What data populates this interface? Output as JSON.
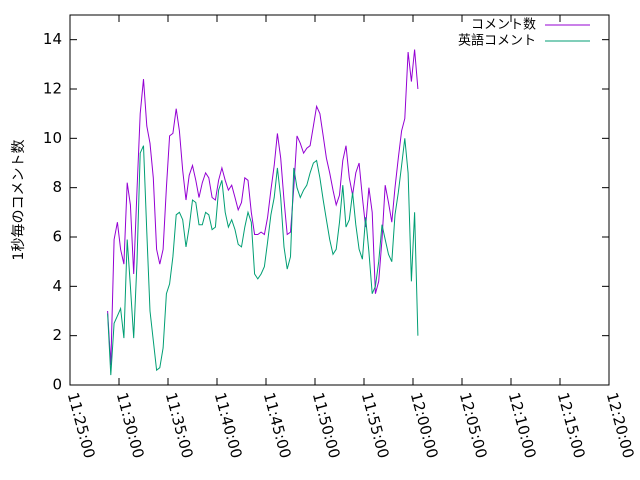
{
  "chart_data": {
    "type": "line",
    "title": "",
    "xlabel": "",
    "ylabel": "1秒毎のコメント数",
    "xlim": [
      "11:25:00",
      "12:20:00"
    ],
    "ylim": [
      0,
      15
    ],
    "grid": false,
    "legend_position": "top-right",
    "x_ticks": [
      "11:25:00",
      "11:30:00",
      "11:35:00",
      "11:40:00",
      "11:45:00",
      "11:50:00",
      "11:55:00",
      "12:00:00",
      "12:05:00",
      "12:10:00",
      "12:15:00",
      "12:20:00"
    ],
    "y_ticks": [
      0,
      2,
      4,
      6,
      8,
      10,
      12,
      14
    ],
    "series": [
      {
        "name": "コメント数",
        "color": "#9400d3",
        "points": [
          [
            "11:28:50",
            3.0
          ],
          [
            "11:29:10",
            0.8
          ],
          [
            "11:29:30",
            5.9
          ],
          [
            "11:29:50",
            6.6
          ],
          [
            "11:30:10",
            5.5
          ],
          [
            "11:30:30",
            4.9
          ],
          [
            "11:30:50",
            8.2
          ],
          [
            "11:31:10",
            7.3
          ],
          [
            "11:31:30",
            4.5
          ],
          [
            "11:31:50",
            7.9
          ],
          [
            "11:32:10",
            11.0
          ],
          [
            "11:32:30",
            12.4
          ],
          [
            "11:32:50",
            10.5
          ],
          [
            "11:33:10",
            9.8
          ],
          [
            "11:33:30",
            8.4
          ],
          [
            "11:33:50",
            5.5
          ],
          [
            "11:34:10",
            4.9
          ],
          [
            "11:34:30",
            5.5
          ],
          [
            "11:34:50",
            8.0
          ],
          [
            "11:35:10",
            10.1
          ],
          [
            "11:35:30",
            10.2
          ],
          [
            "11:35:50",
            11.2
          ],
          [
            "11:36:10",
            10.3
          ],
          [
            "11:36:30",
            8.7
          ],
          [
            "11:36:50",
            7.5
          ],
          [
            "11:37:10",
            8.5
          ],
          [
            "11:37:30",
            8.9
          ],
          [
            "11:37:50",
            8.3
          ],
          [
            "11:38:10",
            7.6
          ],
          [
            "11:38:30",
            8.2
          ],
          [
            "11:38:50",
            8.6
          ],
          [
            "11:39:10",
            8.4
          ],
          [
            "11:39:30",
            7.6
          ],
          [
            "11:39:50",
            7.5
          ],
          [
            "11:40:10",
            8.3
          ],
          [
            "11:40:30",
            8.8
          ],
          [
            "11:40:50",
            8.3
          ],
          [
            "11:41:10",
            7.9
          ],
          [
            "11:41:30",
            8.1
          ],
          [
            "11:41:50",
            7.6
          ],
          [
            "11:42:10",
            7.1
          ],
          [
            "11:42:30",
            7.4
          ],
          [
            "11:42:50",
            8.4
          ],
          [
            "11:43:10",
            8.3
          ],
          [
            "11:43:30",
            7.0
          ],
          [
            "11:43:50",
            6.1
          ],
          [
            "11:44:10",
            6.1
          ],
          [
            "11:44:30",
            6.2
          ],
          [
            "11:44:50",
            6.1
          ],
          [
            "11:45:10",
            6.8
          ],
          [
            "11:45:30",
            7.9
          ],
          [
            "11:45:50",
            8.9
          ],
          [
            "11:46:10",
            10.2
          ],
          [
            "11:46:30",
            9.2
          ],
          [
            "11:46:50",
            7.5
          ],
          [
            "11:47:10",
            6.1
          ],
          [
            "11:47:30",
            6.2
          ],
          [
            "11:47:50",
            8.0
          ],
          [
            "11:48:10",
            10.1
          ],
          [
            "11:48:30",
            9.8
          ],
          [
            "11:48:50",
            9.4
          ],
          [
            "11:49:10",
            9.6
          ],
          [
            "11:49:30",
            9.7
          ],
          [
            "11:49:50",
            10.5
          ],
          [
            "11:50:10",
            11.3
          ],
          [
            "11:50:30",
            11.0
          ],
          [
            "11:50:50",
            10.1
          ],
          [
            "11:51:10",
            9.2
          ],
          [
            "11:51:30",
            8.6
          ],
          [
            "11:51:50",
            7.9
          ],
          [
            "11:52:10",
            7.3
          ],
          [
            "11:52:30",
            7.7
          ],
          [
            "11:52:50",
            9.1
          ],
          [
            "11:53:10",
            9.7
          ],
          [
            "11:53:30",
            8.4
          ],
          [
            "11:53:50",
            7.7
          ],
          [
            "11:54:10",
            8.6
          ],
          [
            "11:54:30",
            9.0
          ],
          [
            "11:54:50",
            7.6
          ],
          [
            "11:55:10",
            6.4
          ],
          [
            "11:55:30",
            8.0
          ],
          [
            "11:55:50",
            7.0
          ],
          [
            "11:56:10",
            3.7
          ],
          [
            "11:56:30",
            4.2
          ],
          [
            "11:56:50",
            5.9
          ],
          [
            "11:57:10",
            8.1
          ],
          [
            "11:57:30",
            7.4
          ],
          [
            "11:57:50",
            6.6
          ],
          [
            "11:58:10",
            8.0
          ],
          [
            "11:58:30",
            9.2
          ],
          [
            "11:58:50",
            10.3
          ],
          [
            "11:59:10",
            10.8
          ],
          [
            "11:59:30",
            13.5
          ],
          [
            "11:59:50",
            12.3
          ],
          [
            "12:00:10",
            13.6
          ],
          [
            "12:00:30",
            12.0
          ]
        ]
      },
      {
        "name": "英語コメント",
        "color": "#009e73",
        "points": [
          [
            "11:28:50",
            2.9
          ],
          [
            "11:29:10",
            0.4
          ],
          [
            "11:29:30",
            2.5
          ],
          [
            "11:29:50",
            2.8
          ],
          [
            "11:30:10",
            3.1
          ],
          [
            "11:30:30",
            1.9
          ],
          [
            "11:30:50",
            5.9
          ],
          [
            "11:31:10",
            4.0
          ],
          [
            "11:31:30",
            1.9
          ],
          [
            "11:31:50",
            5.0
          ],
          [
            "11:32:10",
            9.4
          ],
          [
            "11:32:30",
            9.7
          ],
          [
            "11:32:50",
            6.2
          ],
          [
            "11:33:10",
            3.0
          ],
          [
            "11:33:30",
            1.8
          ],
          [
            "11:33:50",
            0.6
          ],
          [
            "11:34:10",
            0.7
          ],
          [
            "11:34:30",
            1.5
          ],
          [
            "11:34:50",
            3.7
          ],
          [
            "11:35:10",
            4.1
          ],
          [
            "11:35:30",
            5.2
          ],
          [
            "11:35:50",
            6.9
          ],
          [
            "11:36:10",
            7.0
          ],
          [
            "11:36:30",
            6.7
          ],
          [
            "11:36:50",
            5.6
          ],
          [
            "11:37:10",
            6.4
          ],
          [
            "11:37:30",
            7.5
          ],
          [
            "11:37:50",
            7.4
          ],
          [
            "11:38:10",
            6.5
          ],
          [
            "11:38:30",
            6.5
          ],
          [
            "11:38:50",
            7.0
          ],
          [
            "11:39:10",
            6.9
          ],
          [
            "11:39:30",
            6.3
          ],
          [
            "11:39:50",
            6.4
          ],
          [
            "11:40:10",
            7.9
          ],
          [
            "11:40:30",
            8.3
          ],
          [
            "11:40:50",
            7.0
          ],
          [
            "11:41:10",
            6.4
          ],
          [
            "11:41:30",
            6.7
          ],
          [
            "11:41:50",
            6.3
          ],
          [
            "11:42:10",
            5.7
          ],
          [
            "11:42:30",
            5.6
          ],
          [
            "11:42:50",
            6.4
          ],
          [
            "11:43:10",
            7.0
          ],
          [
            "11:43:30",
            6.6
          ],
          [
            "11:43:50",
            4.5
          ],
          [
            "11:44:10",
            4.3
          ],
          [
            "11:44:30",
            4.5
          ],
          [
            "11:44:50",
            4.8
          ],
          [
            "11:45:10",
            5.8
          ],
          [
            "11:45:30",
            6.9
          ],
          [
            "11:45:50",
            7.6
          ],
          [
            "11:46:10",
            8.8
          ],
          [
            "11:46:30",
            7.6
          ],
          [
            "11:46:50",
            5.6
          ],
          [
            "11:47:10",
            4.7
          ],
          [
            "11:47:30",
            5.2
          ],
          [
            "11:47:50",
            8.8
          ],
          [
            "11:48:10",
            8.0
          ],
          [
            "11:48:30",
            7.6
          ],
          [
            "11:48:50",
            7.9
          ],
          [
            "11:49:10",
            8.1
          ],
          [
            "11:49:30",
            8.6
          ],
          [
            "11:49:50",
            9.0
          ],
          [
            "11:50:10",
            9.1
          ],
          [
            "11:50:30",
            8.4
          ],
          [
            "11:50:50",
            7.5
          ],
          [
            "11:51:10",
            6.7
          ],
          [
            "11:51:30",
            5.9
          ],
          [
            "11:51:50",
            5.3
          ],
          [
            "11:52:10",
            5.5
          ],
          [
            "11:52:30",
            6.6
          ],
          [
            "11:52:50",
            8.1
          ],
          [
            "11:53:10",
            6.4
          ],
          [
            "11:53:30",
            6.7
          ],
          [
            "11:53:50",
            7.8
          ],
          [
            "11:54:10",
            6.5
          ],
          [
            "11:54:30",
            5.5
          ],
          [
            "11:54:50",
            5.1
          ],
          [
            "11:55:10",
            6.8
          ],
          [
            "11:55:30",
            5.4
          ],
          [
            "11:55:50",
            3.7
          ],
          [
            "11:56:10",
            4.0
          ],
          [
            "11:56:30",
            5.0
          ],
          [
            "11:56:50",
            6.5
          ],
          [
            "11:57:10",
            5.9
          ],
          [
            "11:57:30",
            5.3
          ],
          [
            "11:57:50",
            5.0
          ],
          [
            "11:58:10",
            6.9
          ],
          [
            "11:58:30",
            7.8
          ],
          [
            "11:58:50",
            8.9
          ],
          [
            "11:59:10",
            10.0
          ],
          [
            "11:59:30",
            8.6
          ],
          [
            "11:59:50",
            4.2
          ],
          [
            "12:00:10",
            7.0
          ],
          [
            "12:00:30",
            2.0
          ]
        ]
      }
    ]
  }
}
